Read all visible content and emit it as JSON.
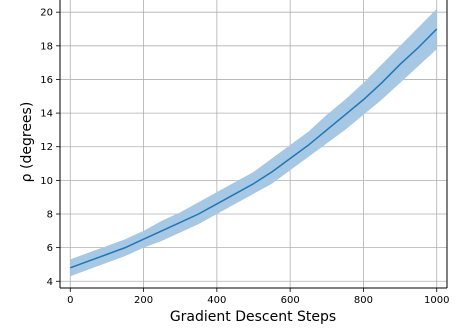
{
  "chart_data": {
    "type": "line",
    "title": "",
    "xlabel": "Gradient Descent Steps",
    "ylabel": "ρ (degrees)",
    "xlim": [
      -28,
      1028
    ],
    "ylim": [
      3.6,
      21.2
    ],
    "xticks": [
      0,
      200,
      400,
      600,
      800,
      1000
    ],
    "yticks": [
      4,
      6,
      8,
      10,
      12,
      14,
      16,
      18,
      20
    ],
    "grid": true,
    "legend": "none",
    "series": [
      {
        "x": [
          0,
          50,
          100,
          150,
          200,
          250,
          300,
          350,
          400,
          450,
          500,
          550,
          600,
          650,
          700,
          750,
          800,
          850,
          900,
          950,
          1000
        ],
        "y": [
          4.8,
          5.2,
          5.6,
          6.0,
          6.5,
          7.0,
          7.5,
          8.0,
          8.6,
          9.2,
          9.8,
          10.5,
          11.3,
          12.1,
          13.0,
          13.9,
          14.8,
          15.8,
          16.9,
          17.9,
          19.0
        ],
        "band_low": [
          4.3,
          4.7,
          5.1,
          5.5,
          6.0,
          6.4,
          6.9,
          7.4,
          8.0,
          8.6,
          9.2,
          9.8,
          10.6,
          11.4,
          12.2,
          13.0,
          13.9,
          14.8,
          15.8,
          16.8,
          17.8
        ],
        "band_high": [
          5.3,
          5.7,
          6.1,
          6.5,
          7.0,
          7.6,
          8.1,
          8.7,
          9.3,
          9.9,
          10.5,
          11.3,
          12.1,
          12.9,
          13.9,
          14.8,
          15.8,
          16.9,
          18.0,
          19.1,
          20.2
        ],
        "line_color": "#1f77b4",
        "band_color": "#a6c8e4"
      }
    ]
  }
}
